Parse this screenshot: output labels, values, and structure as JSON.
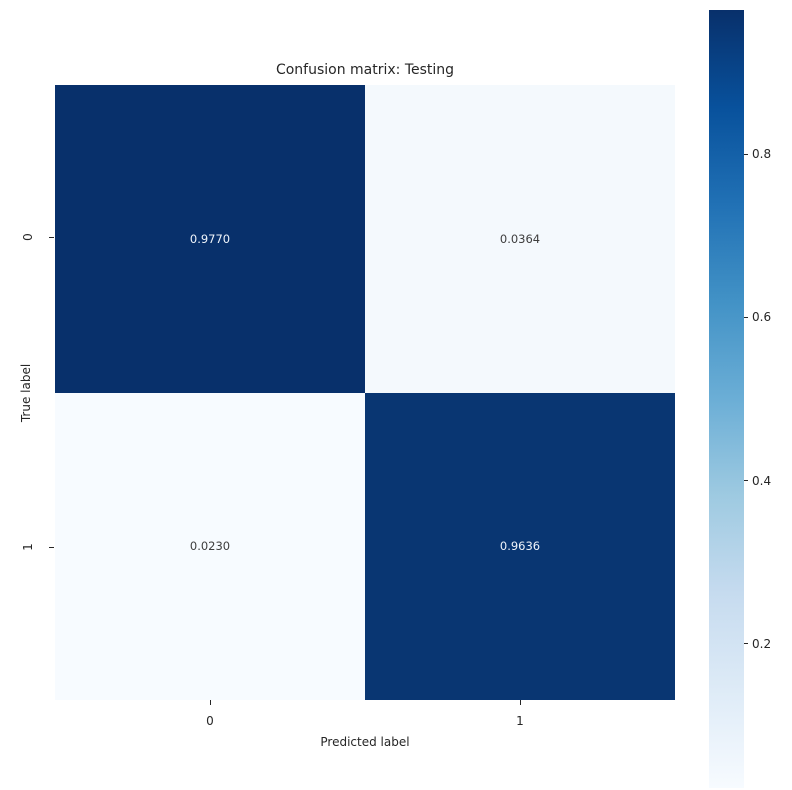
{
  "chart_data": {
    "type": "heatmap",
    "title": "Confusion matrix: Testing",
    "xlabel": "Predicted label",
    "ylabel": "True label",
    "x_ticks": [
      "0",
      "1"
    ],
    "y_ticks": [
      "0",
      "1"
    ],
    "values": [
      [
        0.977,
        0.0364
      ],
      [
        0.023,
        0.9636
      ]
    ],
    "cell_labels": [
      [
        "0.9770",
        "0.0364"
      ],
      [
        "0.0230",
        "0.9636"
      ]
    ],
    "cell_colors": [
      [
        "#08306b",
        "#f4f9fd"
      ],
      [
        "#f7fbff",
        "#093672"
      ]
    ],
    "annot_color_on_dark": "#f0f5fb",
    "annot_color_on_light": "#3d3d3d",
    "colormap": "Blues",
    "colormap_stops_bottom_to_top": [
      "#f7fbff",
      "#deebf7",
      "#c6dbef",
      "#9ecae1",
      "#6baed6",
      "#4292c6",
      "#2171b5",
      "#08519c",
      "#08306b"
    ],
    "colorbar": {
      "min": 0.023,
      "max": 0.977,
      "ticks": [
        0.8,
        0.6,
        0.4,
        0.2
      ],
      "tick_labels": [
        "0.8",
        "0.6",
        "0.4",
        "0.2"
      ],
      "position": "right"
    },
    "grid": false,
    "legend_position": "none"
  }
}
